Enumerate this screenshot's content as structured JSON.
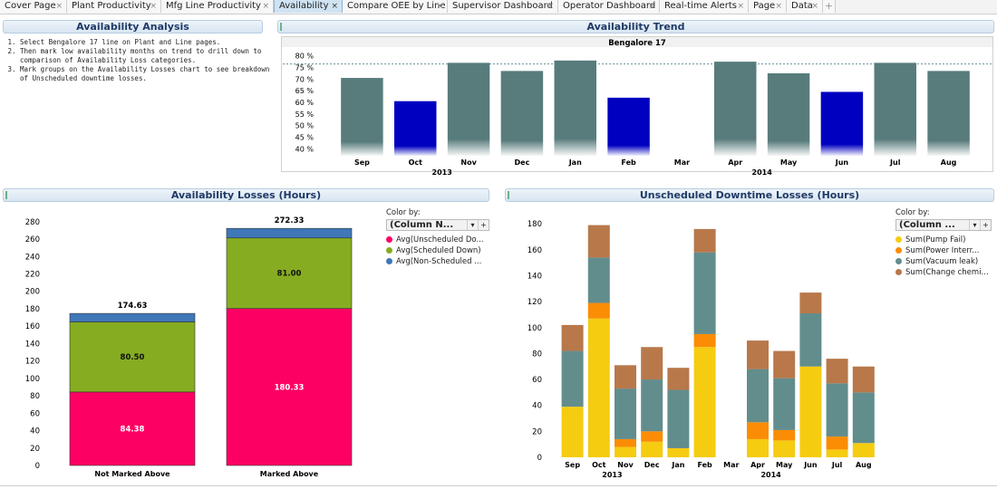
{
  "tabs": [
    {
      "label": "Cover Page",
      "active": false
    },
    {
      "label": "Plant Productivity",
      "active": false
    },
    {
      "label": "Mfg Line Productivity",
      "active": false
    },
    {
      "label": "Availability",
      "active": true
    },
    {
      "label": "Compare OEE by Line",
      "active": false
    },
    {
      "label": "Supervisor Dashboard",
      "active": false
    },
    {
      "label": "Operator Dashboard",
      "active": false
    },
    {
      "label": "Real-time Alerts",
      "active": false
    },
    {
      "label": "Page",
      "active": false
    },
    {
      "label": "Data",
      "active": false
    }
  ],
  "add_tab_label": "+",
  "close_glyph": "×",
  "analysis": {
    "title": "Availability Analysis",
    "steps": [
      "Select Bengalore 17 line on Plant and Line pages.",
      "Then mark low availability months on trend to drill down to comparison of Availability Loss categories.",
      "Mark groups on the Availability Losses chart to see breakdown of Unscheduled downtime losses."
    ]
  },
  "trend": {
    "header": "Availability Trend"
  },
  "losses": {
    "header": "Availability Losses (Hours)",
    "color_by_label": "Color by:",
    "color_by_value": "(Column N...",
    "legend": [
      "Avg(Unscheduled Do...",
      "Avg(Scheduled Down)",
      "Avg(Non-Scheduled ..."
    ]
  },
  "downtime": {
    "header": "Unscheduled Downtime Losses (Hours)",
    "color_by_label": "Color by:",
    "color_by_value": "(Column ...",
    "legend": [
      "Sum(Pump Fail)",
      "Sum(Power Interr...",
      "Sum(Vacuum leak)",
      "Sum(Change chemi..."
    ]
  },
  "colors": {
    "bar_normal": "#587b7b",
    "bar_marked": "#0000c0",
    "unscheduled": "#fd0063",
    "scheduled": "#86ac22",
    "nonscheduled": "#3f77b8",
    "pump": "#f5cc10",
    "power": "#fb8c05",
    "vacuum": "#628d8d",
    "chemical": "#b8784a",
    "tab_active": "#cfe3f3"
  },
  "chart_data": [
    {
      "type": "bar",
      "title": "Bengalore 17",
      "categories": [
        "Sep",
        "Oct",
        "Nov",
        "Dec",
        "Jan",
        "Feb",
        "Mar",
        "Apr",
        "May",
        "Jun",
        "Jul",
        "Aug"
      ],
      "year_groups": [
        {
          "label": "2013",
          "categories": [
            "Sep",
            "Oct",
            "Nov",
            "Dec"
          ]
        },
        {
          "label": "2014",
          "categories": [
            "Jan",
            "Feb",
            "Mar",
            "Apr",
            "May",
            "Jun",
            "Jul",
            "Aug"
          ]
        }
      ],
      "values": [
        70.5,
        60.5,
        77,
        73.5,
        78,
        62,
        null,
        77.5,
        72.5,
        64.5,
        77,
        73.5
      ],
      "marked": [
        false,
        true,
        false,
        false,
        false,
        true,
        false,
        false,
        false,
        true,
        false,
        false
      ],
      "reference_line": 76.5,
      "yticks": [
        40,
        45,
        50,
        55,
        60,
        65,
        70,
        75,
        80
      ],
      "ytick_suffix": " %",
      "ylim": [
        37,
        83
      ],
      "grid": false
    },
    {
      "type": "bar",
      "stacked": true,
      "categories": [
        "Not Marked Above",
        "Marked Above"
      ],
      "series": [
        {
          "name": "Avg(Unscheduled Do...",
          "values": [
            84.38,
            180.33
          ]
        },
        {
          "name": "Avg(Scheduled Down)",
          "values": [
            80.5,
            81.0
          ]
        },
        {
          "name": "Avg(Non-Scheduled ...",
          "values": [
            9.75,
            11.0
          ]
        }
      ],
      "segment_labels": [
        [
          "84.38",
          "80.50"
        ],
        [
          "180.33",
          "81.00"
        ]
      ],
      "totals": [
        "174.63",
        "272.33"
      ],
      "yticks": [
        0,
        20,
        40,
        60,
        80,
        100,
        120,
        140,
        160,
        180,
        200,
        220,
        240,
        260,
        280
      ],
      "ylim": [
        0,
        285
      ],
      "legend_position": "right"
    },
    {
      "type": "bar",
      "stacked": true,
      "categories": [
        "Sep",
        "Oct",
        "Nov",
        "Dec",
        "Jan",
        "Feb",
        "Mar",
        "Apr",
        "May",
        "Jun",
        "Jul",
        "Aug"
      ],
      "year_groups": [
        {
          "label": "2013",
          "categories": [
            "Sep",
            "Oct",
            "Nov",
            "Dec"
          ]
        },
        {
          "label": "2014",
          "categories": [
            "Jan",
            "Feb",
            "Mar",
            "Apr",
            "May",
            "Jun",
            "Jul",
            "Aug"
          ]
        }
      ],
      "series": [
        {
          "name": "Sum(Pump Fail)",
          "values": [
            39,
            107,
            8,
            12,
            7,
            85,
            0,
            14,
            13,
            70,
            6,
            11
          ]
        },
        {
          "name": "Sum(Power Interr...",
          "values": [
            0,
            12,
            6,
            8,
            0,
            10,
            0,
            13,
            8,
            0,
            10,
            0
          ]
        },
        {
          "name": "Sum(Vacuum leak)",
          "values": [
            43,
            35,
            39,
            40,
            45,
            63,
            0,
            41,
            40,
            41,
            41,
            39
          ]
        },
        {
          "name": "Sum(Change chemi...",
          "values": [
            20,
            25,
            18,
            25,
            17,
            18,
            0,
            22,
            21,
            16,
            19,
            20
          ]
        }
      ],
      "yticks": [
        0,
        20,
        40,
        60,
        80,
        100,
        120,
        140,
        160,
        180
      ],
      "ylim": [
        0,
        185
      ],
      "legend_position": "right"
    }
  ]
}
